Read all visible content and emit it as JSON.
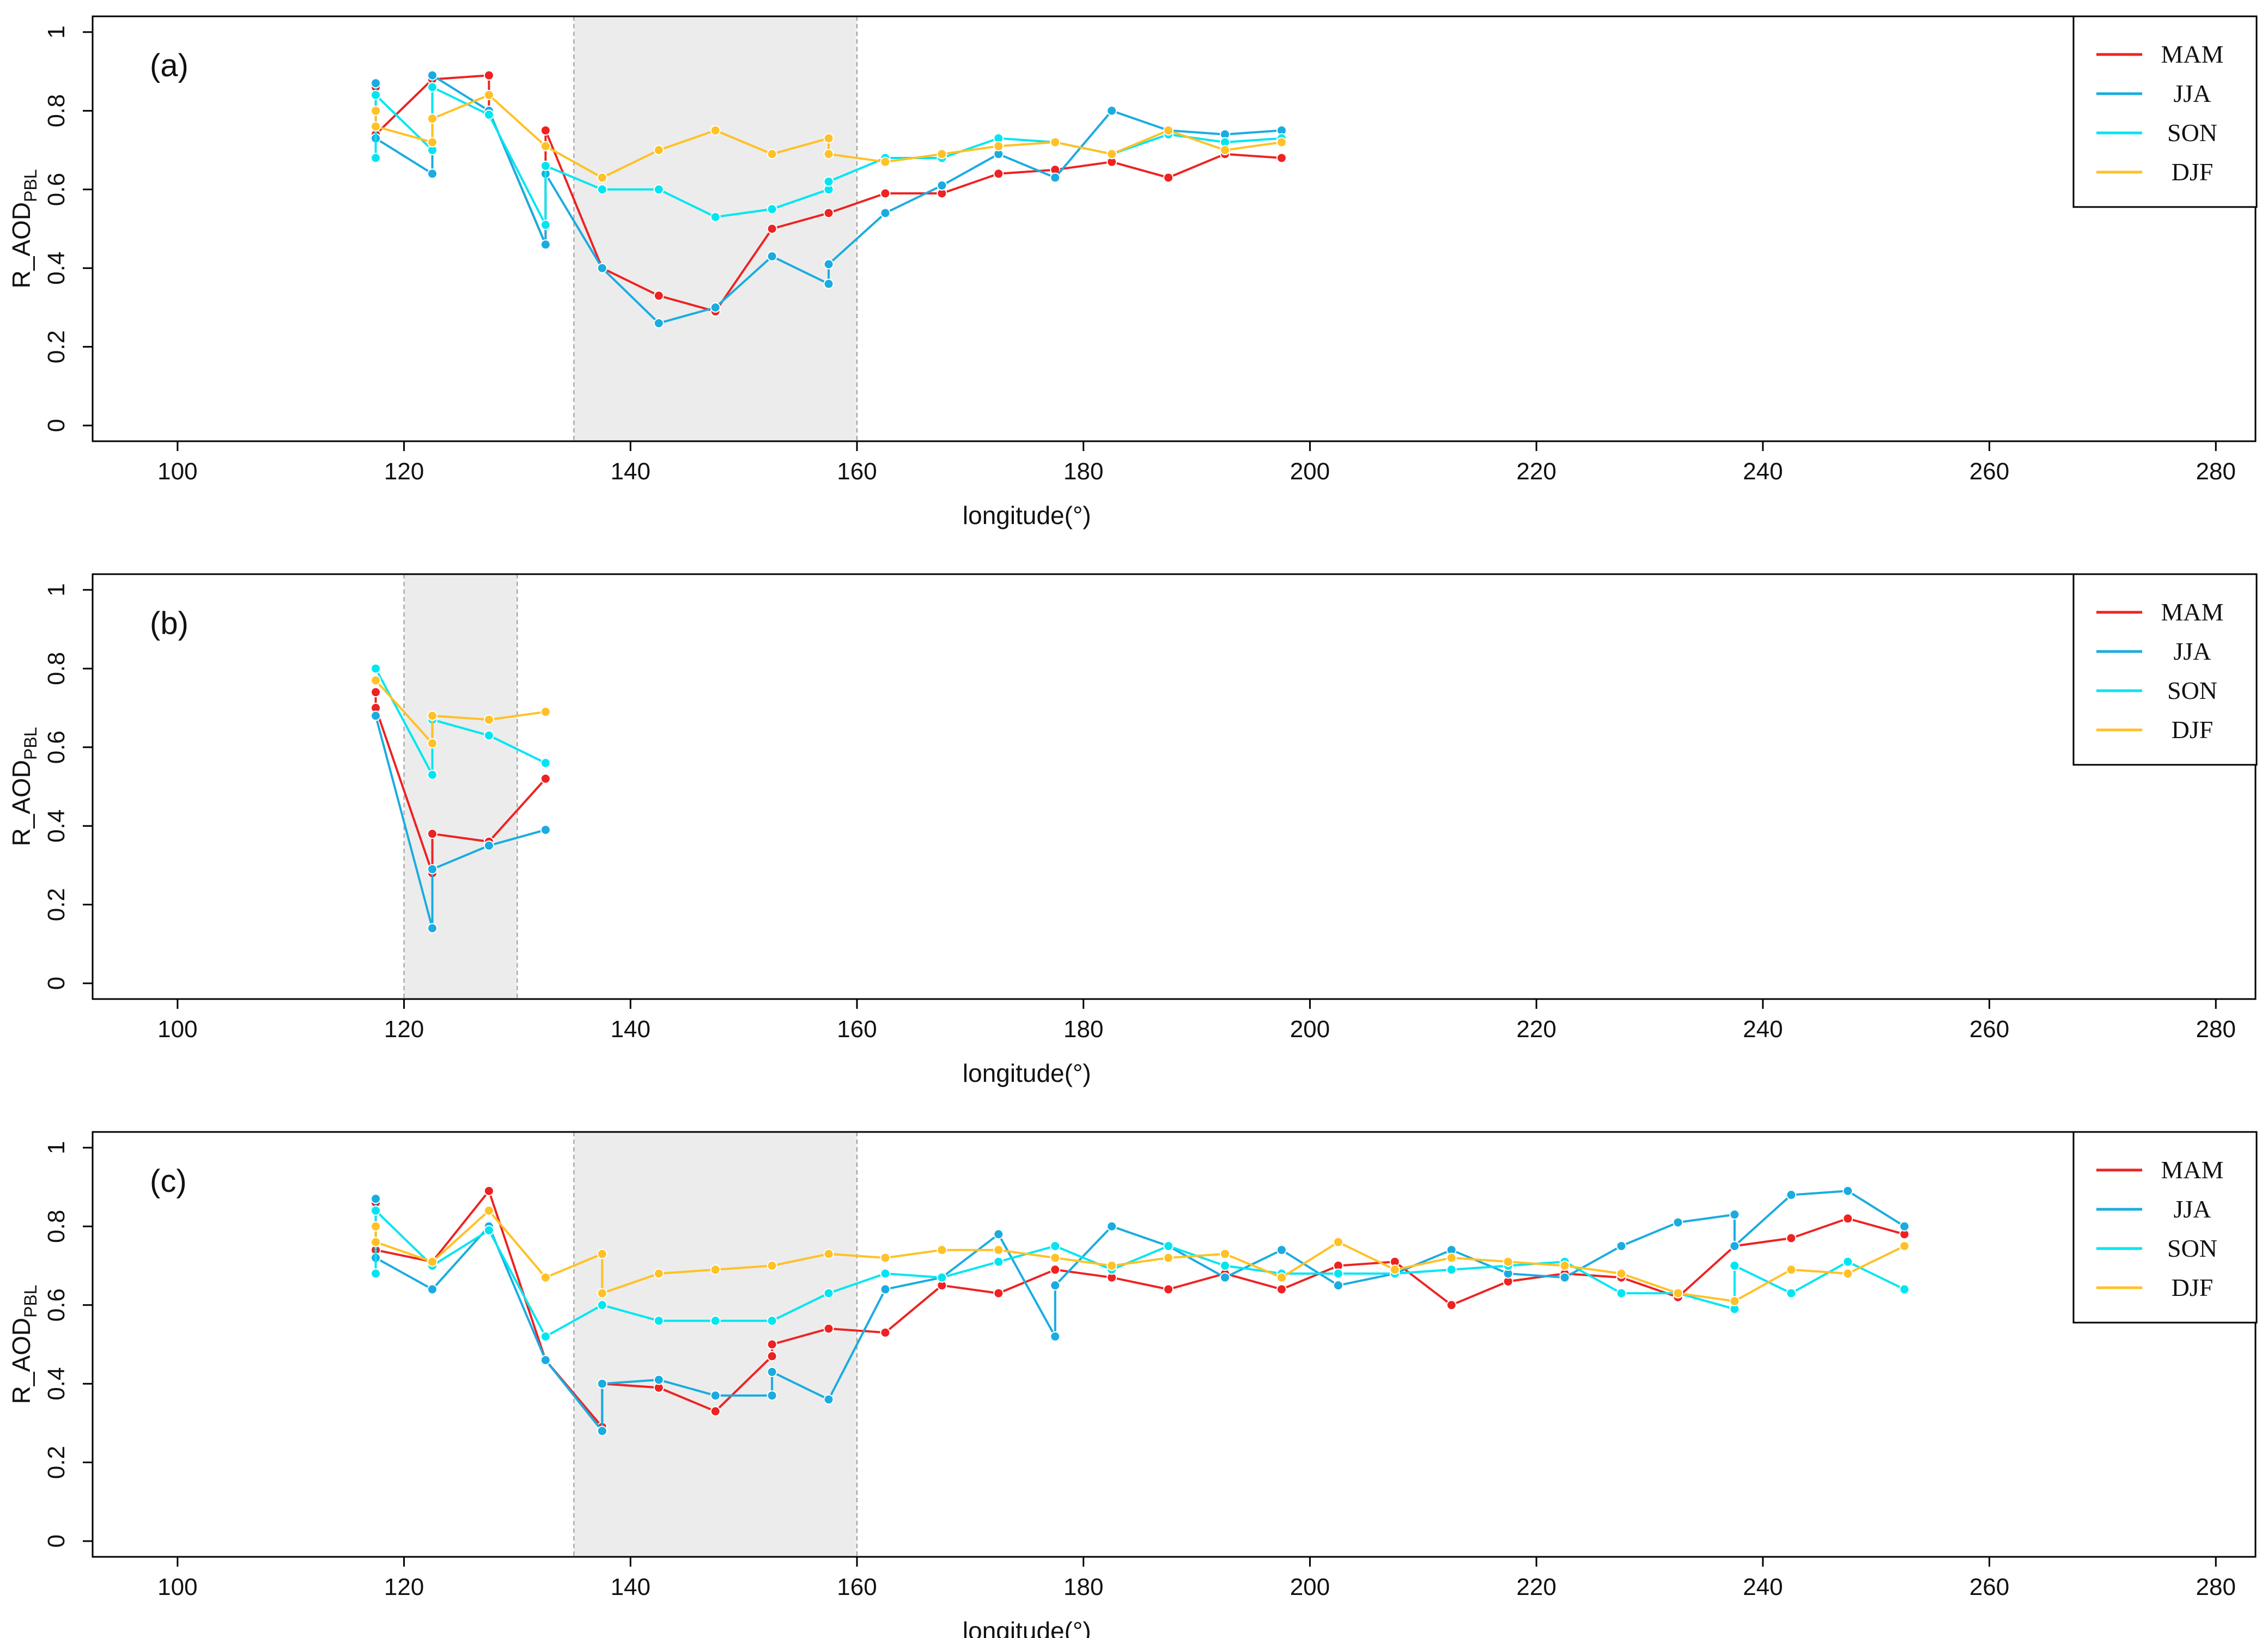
{
  "chart_data": [
    {
      "type": "line",
      "panel_label": "(a)",
      "xlabel": "longitude(°)",
      "ylabel_main": "R_AOD",
      "ylabel_sub": "PBL",
      "xlim": [
        92.5,
        283.5
      ],
      "ylim": [
        -0.04,
        1.04
      ],
      "xticks": [
        "100",
        "120",
        "140",
        "160",
        "180",
        "200",
        "220",
        "240",
        "260",
        "280"
      ],
      "yticks": [
        "0",
        "0.2",
        "0.4",
        "0.6",
        "0.8",
        "1"
      ],
      "shaded_region": [
        135,
        160
      ],
      "legend": [
        "MAM",
        "JJA",
        "SON",
        "DJF"
      ],
      "series": [
        {
          "name": "MAM",
          "color": "#EE2222",
          "points": [
            [
              117.5,
              0.86
            ],
            [
              117.5,
              0.74
            ],
            [
              122.5,
              0.88
            ],
            [
              127.5,
              0.89
            ],
            [
              127.5,
              0.8
            ],
            [
              132.5,
              0.46
            ],
            [
              132.5,
              0.75
            ],
            [
              137.5,
              0.4
            ],
            [
              142.5,
              0.33
            ],
            [
              147.5,
              0.29
            ],
            [
              152.5,
              0.5
            ],
            [
              157.5,
              0.54
            ],
            [
              162.5,
              0.59
            ],
            [
              167.5,
              0.59
            ],
            [
              172.5,
              0.64
            ],
            [
              177.5,
              0.65
            ],
            [
              182.5,
              0.67
            ],
            [
              187.5,
              0.63
            ],
            [
              192.5,
              0.69
            ],
            [
              197.5,
              0.68
            ]
          ]
        },
        {
          "name": "JJA",
          "color": "#1AACE0",
          "points": [
            [
              117.5,
              0.87
            ],
            [
              117.5,
              0.73
            ],
            [
              122.5,
              0.64
            ],
            [
              122.5,
              0.89
            ],
            [
              127.5,
              0.8
            ],
            [
              132.5,
              0.46
            ],
            [
              132.5,
              0.64
            ],
            [
              137.5,
              0.4
            ],
            [
              142.5,
              0.26
            ],
            [
              147.5,
              0.3
            ],
            [
              152.5,
              0.43
            ],
            [
              157.5,
              0.36
            ],
            [
              157.5,
              0.41
            ],
            [
              162.5,
              0.54
            ],
            [
              167.5,
              0.61
            ],
            [
              172.5,
              0.69
            ],
            [
              177.5,
              0.63
            ],
            [
              182.5,
              0.8
            ],
            [
              187.5,
              0.75
            ],
            [
              192.5,
              0.74
            ],
            [
              197.5,
              0.75
            ]
          ]
        },
        {
          "name": "SON",
          "color": "#00E6F0",
          "points": [
            [
              117.5,
              0.68
            ],
            [
              117.5,
              0.84
            ],
            [
              122.5,
              0.7
            ],
            [
              122.5,
              0.86
            ],
            [
              127.5,
              0.79
            ],
            [
              132.5,
              0.51
            ],
            [
              132.5,
              0.66
            ],
            [
              137.5,
              0.6
            ],
            [
              142.5,
              0.6
            ],
            [
              147.5,
              0.53
            ],
            [
              152.5,
              0.55
            ],
            [
              157.5,
              0.6
            ],
            [
              157.5,
              0.62
            ],
            [
              162.5,
              0.68
            ],
            [
              167.5,
              0.68
            ],
            [
              172.5,
              0.73
            ],
            [
              177.5,
              0.72
            ],
            [
              182.5,
              0.69
            ],
            [
              187.5,
              0.74
            ],
            [
              192.5,
              0.72
            ],
            [
              197.5,
              0.73
            ]
          ]
        },
        {
          "name": "DJF",
          "color": "#FFC125",
          "points": [
            [
              117.5,
              0.8
            ],
            [
              117.5,
              0.76
            ],
            [
              122.5,
              0.72
            ],
            [
              122.5,
              0.78
            ],
            [
              127.5,
              0.84
            ],
            [
              132.5,
              0.71
            ],
            [
              137.5,
              0.63
            ],
            [
              142.5,
              0.7
            ],
            [
              147.5,
              0.75
            ],
            [
              152.5,
              0.69
            ],
            [
              157.5,
              0.73
            ],
            [
              157.5,
              0.69
            ],
            [
              162.5,
              0.67
            ],
            [
              167.5,
              0.69
            ],
            [
              172.5,
              0.71
            ],
            [
              177.5,
              0.72
            ],
            [
              182.5,
              0.69
            ],
            [
              187.5,
              0.75
            ],
            [
              192.5,
              0.7
            ],
            [
              197.5,
              0.72
            ]
          ]
        }
      ]
    },
    {
      "type": "line",
      "panel_label": "(b)",
      "xlabel": "longitude(°)",
      "ylabel_main": "R_AOD",
      "ylabel_sub": "PBL",
      "xlim": [
        92.5,
        283.5
      ],
      "ylim": [
        -0.04,
        1.04
      ],
      "xticks": [
        "100",
        "120",
        "140",
        "160",
        "180",
        "200",
        "220",
        "240",
        "260",
        "280"
      ],
      "yticks": [
        "0",
        "0.2",
        "0.4",
        "0.6",
        "0.8",
        "1"
      ],
      "shaded_region": [
        120,
        130
      ],
      "legend": [
        "MAM",
        "JJA",
        "SON",
        "DJF"
      ],
      "series": [
        {
          "name": "MAM",
          "color": "#EE2222",
          "points": [
            [
              117.5,
              0.74
            ],
            [
              117.5,
              0.7
            ],
            [
              122.5,
              0.28
            ],
            [
              122.5,
              0.38
            ],
            [
              127.5,
              0.36
            ],
            [
              132.5,
              0.52
            ]
          ]
        },
        {
          "name": "JJA",
          "color": "#1AACE0",
          "points": [
            [
              117.5,
              0.68
            ],
            [
              122.5,
              0.14
            ],
            [
              122.5,
              0.29
            ],
            [
              127.5,
              0.35
            ],
            [
              132.5,
              0.39
            ]
          ]
        },
        {
          "name": "SON",
          "color": "#00E6F0",
          "points": [
            [
              117.5,
              0.8
            ],
            [
              122.5,
              0.53
            ],
            [
              122.5,
              0.67
            ],
            [
              127.5,
              0.63
            ],
            [
              132.5,
              0.56
            ]
          ]
        },
        {
          "name": "DJF",
          "color": "#FFC125",
          "points": [
            [
              117.5,
              0.77
            ],
            [
              122.5,
              0.61
            ],
            [
              122.5,
              0.68
            ],
            [
              127.5,
              0.67
            ],
            [
              132.5,
              0.69
            ]
          ]
        }
      ]
    },
    {
      "type": "line",
      "panel_label": "(c)",
      "xlabel": "longitude(°)",
      "ylabel_main": "R_AOD",
      "ylabel_sub": "PBL",
      "xlim": [
        92.5,
        283.5
      ],
      "ylim": [
        -0.04,
        1.04
      ],
      "xticks": [
        "100",
        "120",
        "140",
        "160",
        "180",
        "200",
        "220",
        "240",
        "260",
        "280"
      ],
      "yticks": [
        "0",
        "0.2",
        "0.4",
        "0.6",
        "0.8",
        "1"
      ],
      "shaded_region": [
        135,
        160
      ],
      "legend": [
        "MAM",
        "JJA",
        "SON",
        "DJF"
      ],
      "series": [
        {
          "name": "MAM",
          "color": "#EE2222",
          "points": [
            [
              117.5,
              0.86
            ],
            [
              117.5,
              0.74
            ],
            [
              122.5,
              0.71
            ],
            [
              127.5,
              0.89
            ],
            [
              132.5,
              0.46
            ],
            [
              137.5,
              0.29
            ],
            [
              137.5,
              0.4
            ],
            [
              142.5,
              0.39
            ],
            [
              147.5,
              0.33
            ],
            [
              152.5,
              0.47
            ],
            [
              152.5,
              0.5
            ],
            [
              157.5,
              0.54
            ],
            [
              162.5,
              0.53
            ],
            [
              167.5,
              0.65
            ],
            [
              172.5,
              0.63
            ],
            [
              177.5,
              0.69
            ],
            [
              182.5,
              0.67
            ],
            [
              187.5,
              0.64
            ],
            [
              192.5,
              0.68
            ],
            [
              197.5,
              0.64
            ],
            [
              202.5,
              0.7
            ],
            [
              207.5,
              0.71
            ],
            [
              212.5,
              0.6
            ],
            [
              217.5,
              0.66
            ],
            [
              222.5,
              0.68
            ],
            [
              227.5,
              0.67
            ],
            [
              232.5,
              0.62
            ],
            [
              237.5,
              0.75
            ],
            [
              242.5,
              0.77
            ],
            [
              247.5,
              0.82
            ],
            [
              252.5,
              0.78
            ]
          ]
        },
        {
          "name": "JJA",
          "color": "#1AACE0",
          "points": [
            [
              117.5,
              0.87
            ],
            [
              117.5,
              0.72
            ],
            [
              122.5,
              0.64
            ],
            [
              127.5,
              0.8
            ],
            [
              132.5,
              0.46
            ],
            [
              137.5,
              0.28
            ],
            [
              137.5,
              0.4
            ],
            [
              142.5,
              0.41
            ],
            [
              147.5,
              0.37
            ],
            [
              152.5,
              0.37
            ],
            [
              152.5,
              0.43
            ],
            [
              157.5,
              0.36
            ],
            [
              162.5,
              0.64
            ],
            [
              167.5,
              0.67
            ],
            [
              172.5,
              0.78
            ],
            [
              177.5,
              0.52
            ],
            [
              177.5,
              0.65
            ],
            [
              182.5,
              0.8
            ],
            [
              187.5,
              0.75
            ],
            [
              192.5,
              0.67
            ],
            [
              197.5,
              0.74
            ],
            [
              202.5,
              0.65
            ],
            [
              207.5,
              0.68
            ],
            [
              212.5,
              0.74
            ],
            [
              217.5,
              0.68
            ],
            [
              222.5,
              0.67
            ],
            [
              227.5,
              0.75
            ],
            [
              232.5,
              0.81
            ],
            [
              237.5,
              0.83
            ],
            [
              237.5,
              0.75
            ],
            [
              242.5,
              0.88
            ],
            [
              247.5,
              0.89
            ],
            [
              252.5,
              0.8
            ]
          ]
        },
        {
          "name": "SON",
          "color": "#00E6F0",
          "points": [
            [
              117.5,
              0.68
            ],
            [
              117.5,
              0.84
            ],
            [
              122.5,
              0.7
            ],
            [
              127.5,
              0.79
            ],
            [
              132.5,
              0.52
            ],
            [
              137.5,
              0.6
            ],
            [
              142.5,
              0.56
            ],
            [
              147.5,
              0.56
            ],
            [
              152.5,
              0.56
            ],
            [
              157.5,
              0.63
            ],
            [
              162.5,
              0.68
            ],
            [
              167.5,
              0.67
            ],
            [
              172.5,
              0.71
            ],
            [
              177.5,
              0.75
            ],
            [
              182.5,
              0.69
            ],
            [
              187.5,
              0.75
            ],
            [
              192.5,
              0.7
            ],
            [
              197.5,
              0.68
            ],
            [
              202.5,
              0.68
            ],
            [
              207.5,
              0.68
            ],
            [
              212.5,
              0.69
            ],
            [
              217.5,
              0.7
            ],
            [
              222.5,
              0.71
            ],
            [
              227.5,
              0.63
            ],
            [
              232.5,
              0.63
            ],
            [
              237.5,
              0.59
            ],
            [
              237.5,
              0.7
            ],
            [
              242.5,
              0.63
            ],
            [
              247.5,
              0.71
            ],
            [
              252.5,
              0.64
            ]
          ]
        },
        {
          "name": "DJF",
          "color": "#FFC125",
          "points": [
            [
              117.5,
              0.8
            ],
            [
              117.5,
              0.76
            ],
            [
              122.5,
              0.71
            ],
            [
              127.5,
              0.84
            ],
            [
              132.5,
              0.67
            ],
            [
              137.5,
              0.73
            ],
            [
              137.5,
              0.63
            ],
            [
              142.5,
              0.68
            ],
            [
              147.5,
              0.69
            ],
            [
              152.5,
              0.7
            ],
            [
              157.5,
              0.73
            ],
            [
              162.5,
              0.72
            ],
            [
              167.5,
              0.74
            ],
            [
              172.5,
              0.74
            ],
            [
              177.5,
              0.72
            ],
            [
              182.5,
              0.7
            ],
            [
              187.5,
              0.72
            ],
            [
              192.5,
              0.73
            ],
            [
              197.5,
              0.67
            ],
            [
              202.5,
              0.76
            ],
            [
              207.5,
              0.69
            ],
            [
              212.5,
              0.72
            ],
            [
              217.5,
              0.71
            ],
            [
              222.5,
              0.7
            ],
            [
              227.5,
              0.68
            ],
            [
              232.5,
              0.63
            ],
            [
              237.5,
              0.61
            ],
            [
              242.5,
              0.69
            ],
            [
              247.5,
              0.68
            ],
            [
              252.5,
              0.75
            ]
          ]
        }
      ]
    }
  ]
}
